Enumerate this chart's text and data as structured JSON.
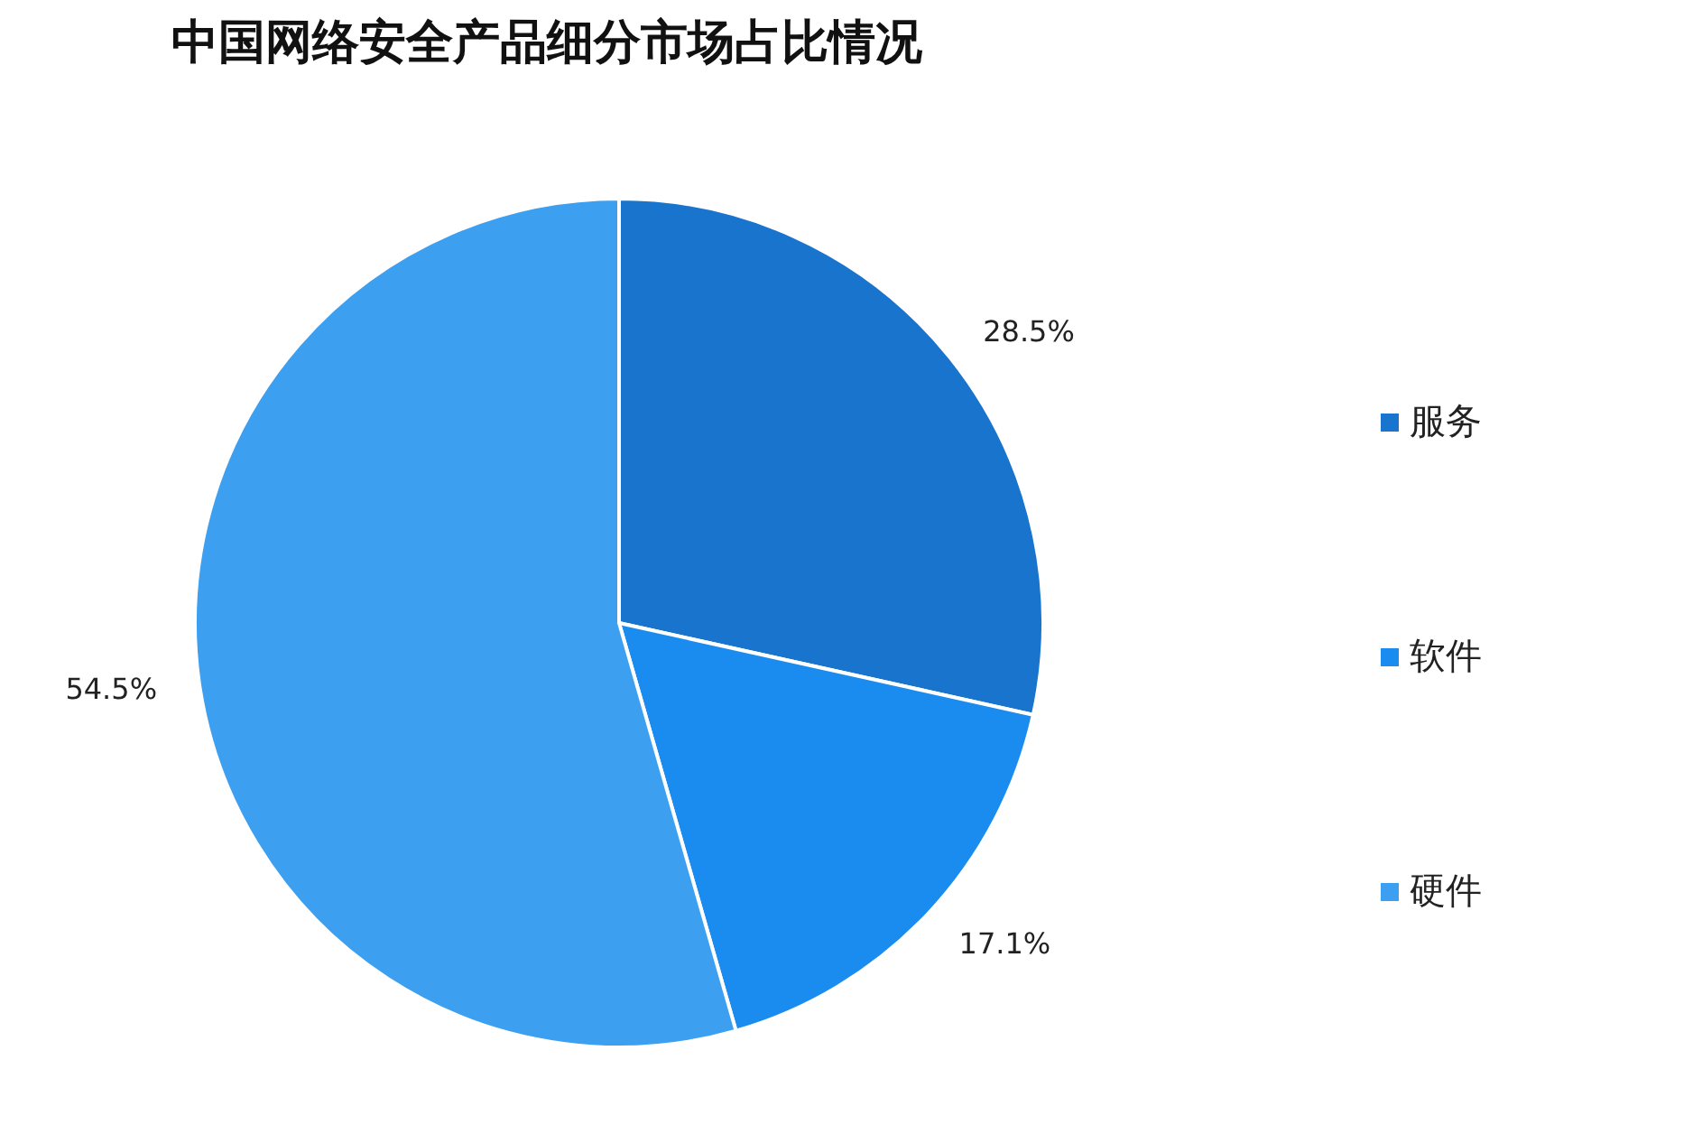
{
  "chart_data": {
    "type": "pie",
    "title": "中国网络安全产品细分市场占比情况",
    "categories": [
      "服务",
      "软件",
      "硬件"
    ],
    "values": [
      28.5,
      17.1,
      54.5
    ],
    "colors": [
      "#1874cd",
      "#1a8cf0",
      "#3d9ff0"
    ],
    "value_labels": [
      "28.5%",
      "17.1%",
      "54.5%"
    ],
    "legend": "right"
  }
}
